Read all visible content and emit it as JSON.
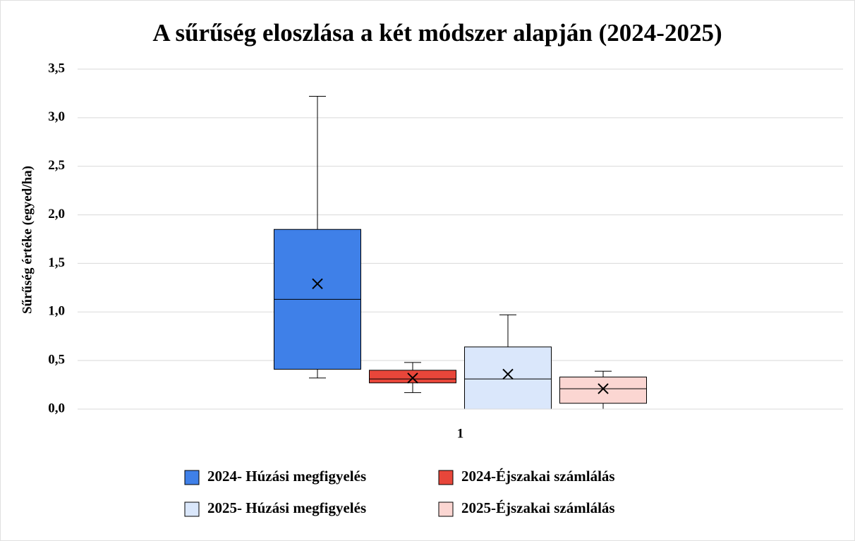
{
  "chart_data": {
    "type": "box",
    "title": "A sűrűség eloszlása a két módszer alapján (2024-2025)",
    "y_label": "Sűrűség értéke (egyed/ha)",
    "categories": [
      "1"
    ],
    "ylim": [
      0,
      3.5
    ],
    "yticks": [
      {
        "value": 0,
        "label": "0,0"
      },
      {
        "value": 0.5,
        "label": "0,5"
      },
      {
        "value": 1,
        "label": "1,0"
      },
      {
        "value": 1.5,
        "label": "1,5"
      },
      {
        "value": 2,
        "label": "2,0"
      },
      {
        "value": 2.5,
        "label": "2,5"
      },
      {
        "value": 3,
        "label": "3,0"
      },
      {
        "value": 3.5,
        "label": "3,5"
      }
    ],
    "grid": true,
    "legend": "bottom",
    "series": [
      {
        "name": "2024- Húzási megfigyelés",
        "color": "#3f80e8",
        "min": 0.32,
        "q1": 0.41,
        "median": 1.13,
        "q3": 1.85,
        "max": 3.22,
        "mean": 1.29
      },
      {
        "name": "2024-Éjszakai számlálás",
        "color": "#e8463a",
        "min": 0.17,
        "q1": 0.27,
        "median": 0.31,
        "q3": 0.4,
        "max": 0.48,
        "mean": 0.32
      },
      {
        "name": "2025- Húzási megfigyelés",
        "color": "#dae7fb",
        "min": 0,
        "q1": 0,
        "median": 0.31,
        "q3": 0.64,
        "max": 0.97,
        "mean": 0.36
      },
      {
        "name": "2025-Éjszakai számlálás",
        "color": "#fbd6d2",
        "min": 0,
        "q1": 0.06,
        "median": 0.21,
        "q3": 0.33,
        "max": 0.39,
        "mean": 0.21
      }
    ]
  }
}
